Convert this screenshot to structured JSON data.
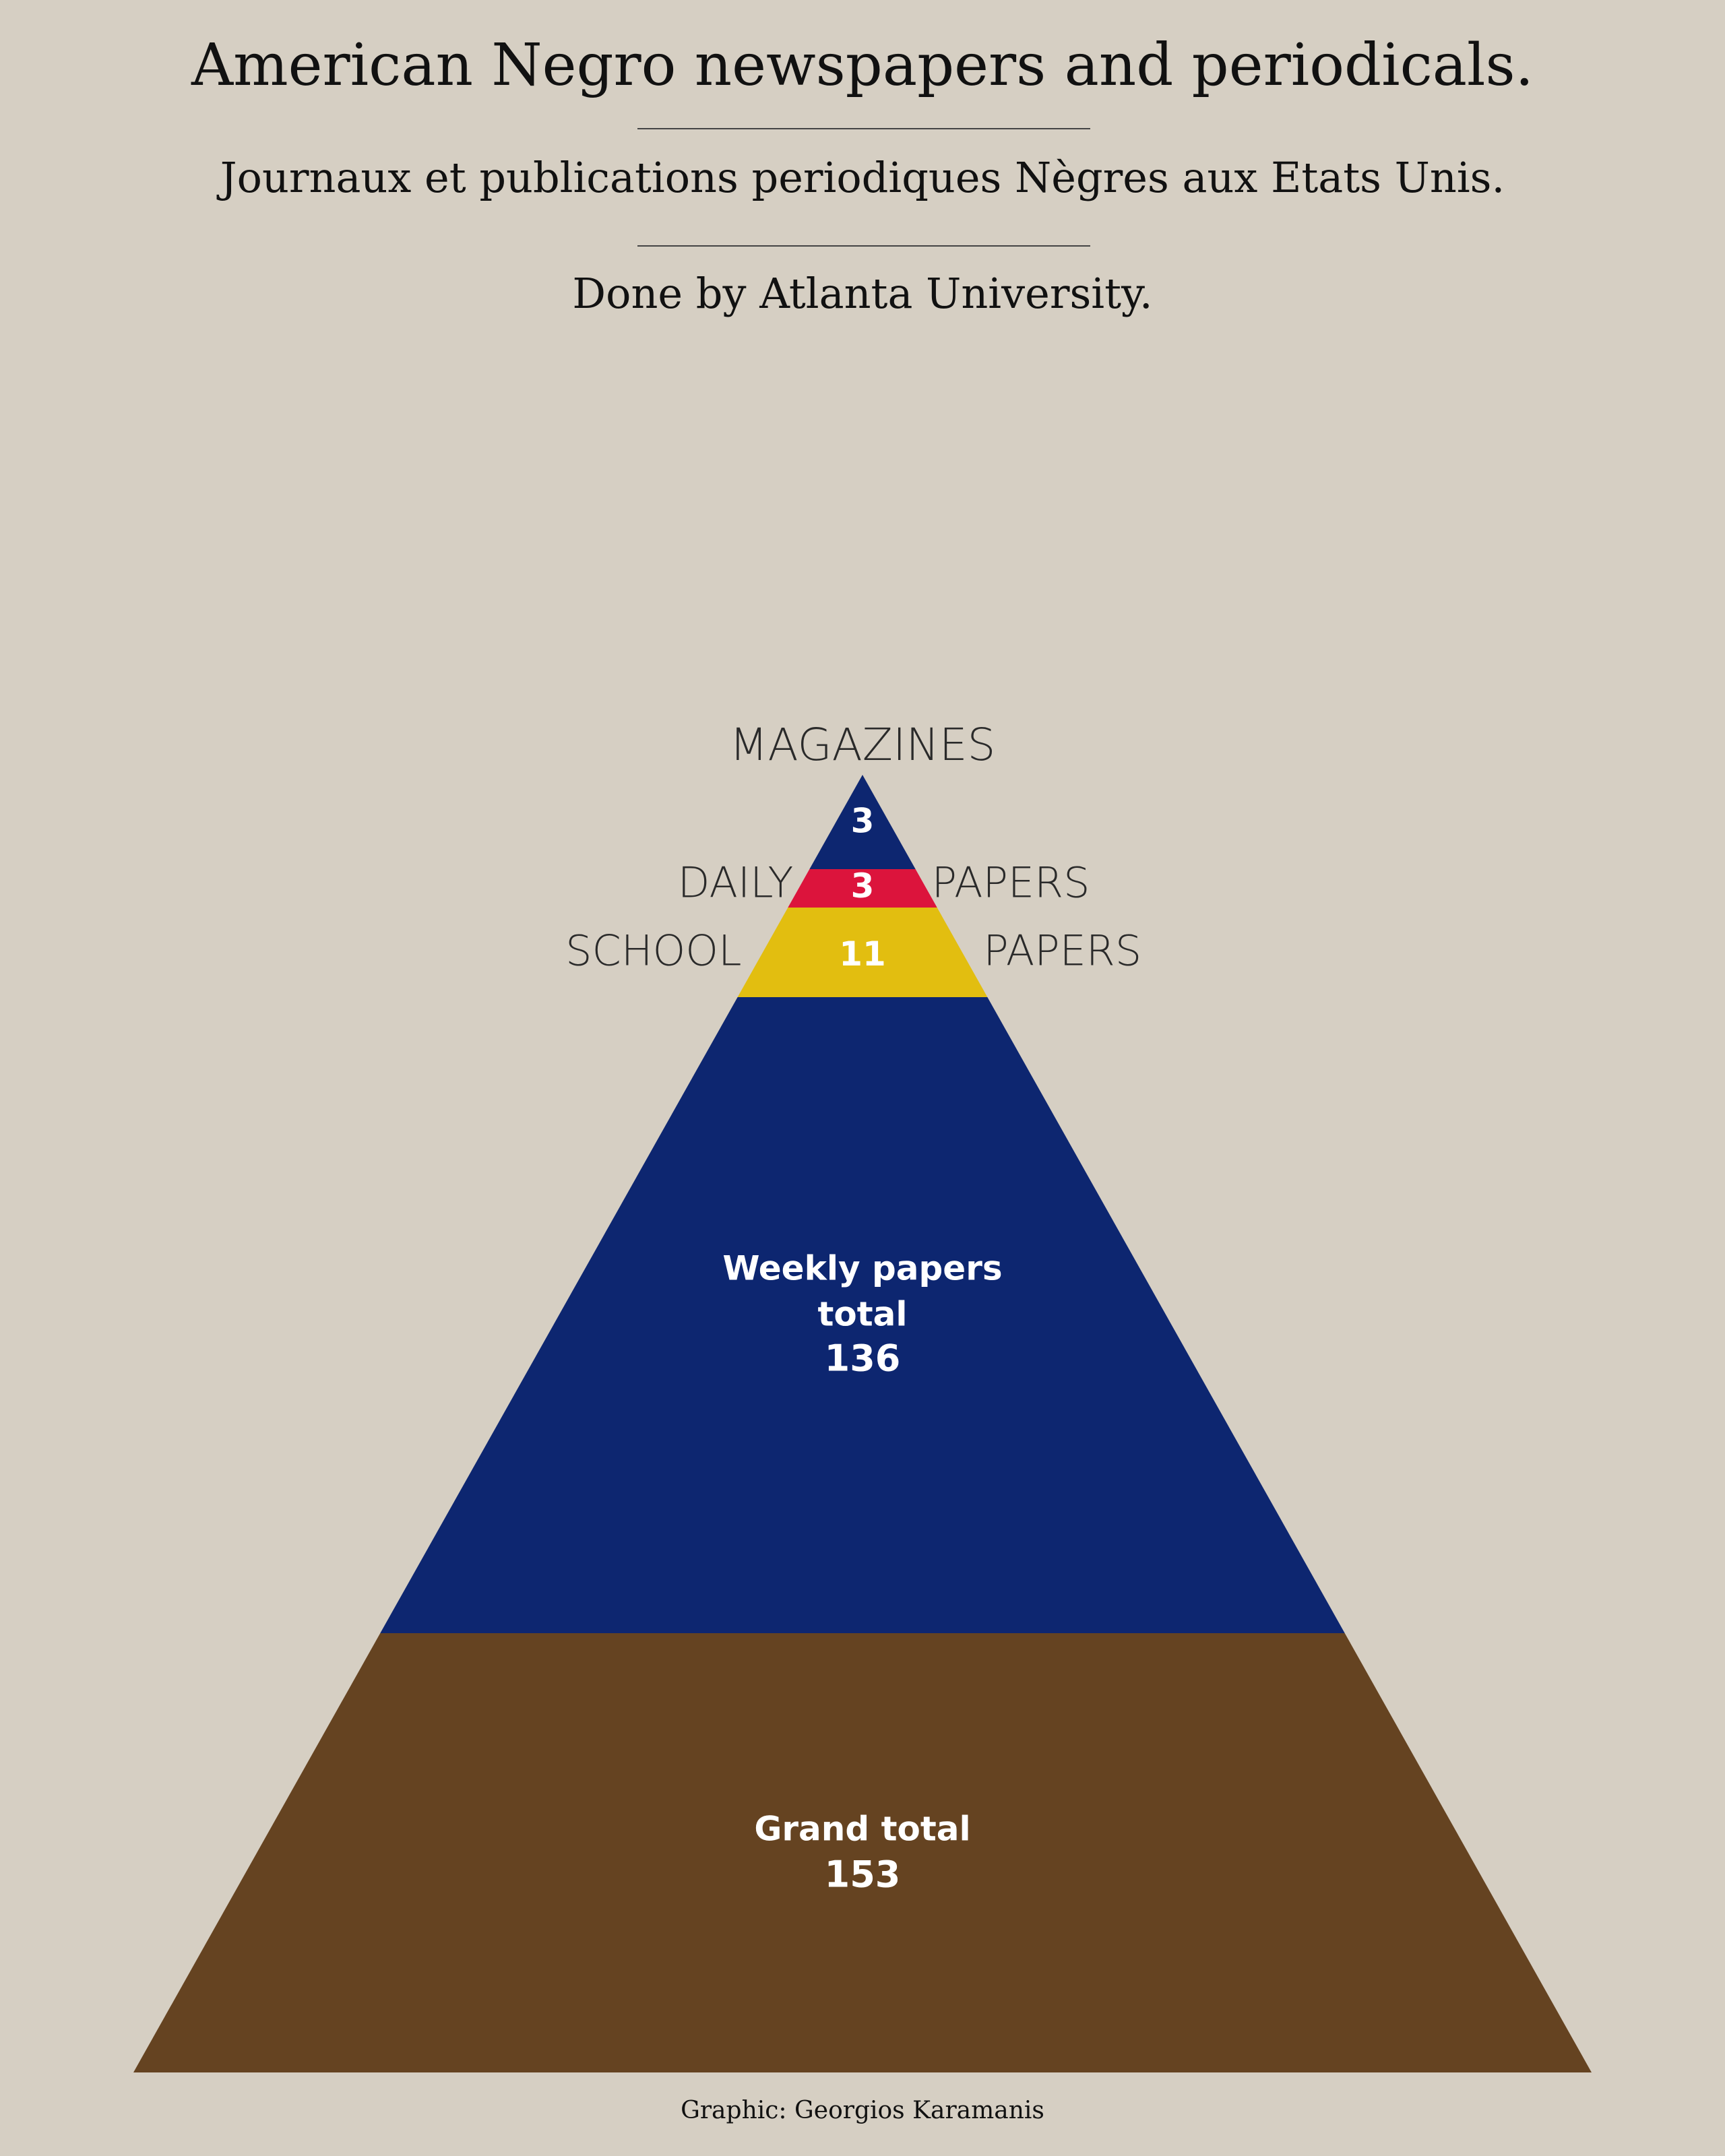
{
  "header": {
    "title": "American Negro newspapers and periodicals.",
    "subtitle": "Journaux et publications periodiques Nègres aux Etats Unis.",
    "credit_line": "Done by Atlanta University."
  },
  "footer": {
    "text": "Graphic: Georgios Karamanis"
  },
  "chart_data": {
    "type": "pyramid",
    "total": 153,
    "segments": [
      {
        "key": "magazines",
        "value": 3,
        "value_label": "3",
        "color": "#0d2670",
        "label_top": "MAGAZINES",
        "label_left": "",
        "label_right": ""
      },
      {
        "key": "daily",
        "value": 3,
        "value_label": "3",
        "color": "#dc143c",
        "label_top": "",
        "label_left": "DAILY",
        "label_right": "PAPERS"
      },
      {
        "key": "school",
        "value": 11,
        "value_label": "11",
        "color": "#e2be10",
        "label_top": "",
        "label_left": "SCHOOL",
        "label_right": "PAPERS"
      },
      {
        "key": "weekly",
        "value": 136,
        "color": "#0d2670",
        "text_lines": [
          "Weekly papers",
          "total",
          "136"
        ]
      }
    ],
    "grand_total": {
      "value": 153,
      "color": "#654321",
      "text_lines": [
        "Grand total",
        "153"
      ]
    }
  }
}
